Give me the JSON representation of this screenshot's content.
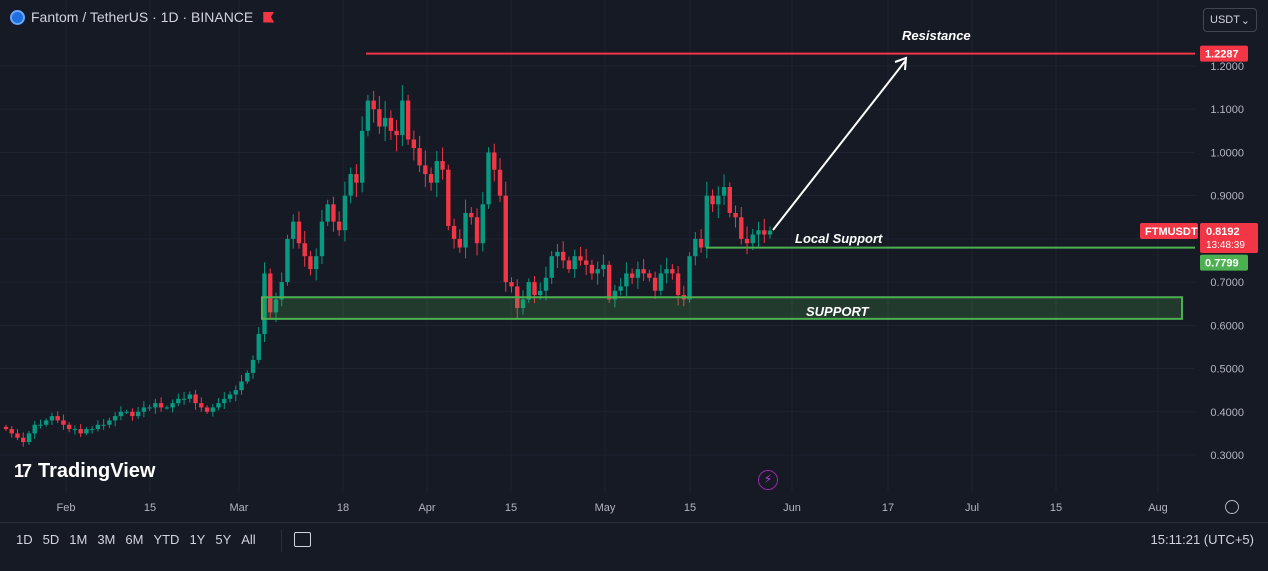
{
  "header": {
    "title": "Fantom / TetherUS · 1D · BINANCE",
    "currency_selector": "USDT",
    "currency_caret": "⌄"
  },
  "branding": {
    "logo_mark": "17",
    "logo_text": "TradingView"
  },
  "bottom_bar": {
    "ranges": [
      "1D",
      "5D",
      "1M",
      "3M",
      "6M",
      "YTD",
      "1Y",
      "5Y",
      "All"
    ],
    "clock": "15:11:21 (UTC+5)"
  },
  "chart_data": {
    "type": "candlestick",
    "symbol": "FTMUSDT",
    "interval": "1D",
    "exchange": "BINANCE",
    "x_axis_ticks": [
      "Feb",
      "15",
      "Mar",
      "18",
      "Apr",
      "15",
      "May",
      "15",
      "Jun",
      "17",
      "Jul",
      "15",
      "Aug"
    ],
    "y_axis_ticks": [
      "1.2000",
      "1.1000",
      "1.0000",
      "0.9000",
      "0.8000",
      "0.7000",
      "0.6000",
      "0.5000",
      "0.4000",
      "0.3000"
    ],
    "ylim": [
      0.23,
      1.3
    ],
    "colors": {
      "up": "#089981",
      "down": "#f23645",
      "grid": "#1f2330",
      "support": "#4caf50",
      "resistance": "#f23645",
      "background": "#161a25"
    },
    "candles_close": [
      0.36,
      0.35,
      0.34,
      0.33,
      0.35,
      0.37,
      0.37,
      0.38,
      0.39,
      0.38,
      0.37,
      0.36,
      0.36,
      0.35,
      0.36,
      0.36,
      0.37,
      0.37,
      0.38,
      0.39,
      0.4,
      0.4,
      0.39,
      0.4,
      0.41,
      0.41,
      0.42,
      0.41,
      0.41,
      0.42,
      0.43,
      0.43,
      0.44,
      0.42,
      0.41,
      0.4,
      0.41,
      0.42,
      0.43,
      0.44,
      0.45,
      0.47,
      0.49,
      0.52,
      0.58,
      0.72,
      0.63,
      0.66,
      0.7,
      0.8,
      0.84,
      0.79,
      0.76,
      0.73,
      0.76,
      0.84,
      0.88,
      0.84,
      0.82,
      0.9,
      0.95,
      0.93,
      1.05,
      1.12,
      1.1,
      1.06,
      1.08,
      1.05,
      1.04,
      1.12,
      1.03,
      1.01,
      0.97,
      0.95,
      0.93,
      0.98,
      0.96,
      0.83,
      0.8,
      0.78,
      0.86,
      0.85,
      0.79,
      0.88,
      1.0,
      0.96,
      0.9,
      0.7,
      0.69,
      0.64,
      0.66,
      0.7,
      0.67,
      0.68,
      0.71,
      0.76,
      0.77,
      0.75,
      0.73,
      0.76,
      0.75,
      0.74,
      0.72,
      0.73,
      0.74,
      0.66,
      0.68,
      0.69,
      0.72,
      0.71,
      0.73,
      0.72,
      0.71,
      0.68,
      0.72,
      0.73,
      0.72,
      0.67,
      0.66,
      0.76,
      0.8,
      0.78,
      0.9,
      0.88,
      0.9,
      0.92,
      0.86,
      0.85,
      0.8,
      0.79,
      0.81,
      0.82,
      0.81,
      0.8192
    ],
    "price_labels": {
      "resistance": "1.2287",
      "current": "0.8192",
      "countdown": "13:48:39",
      "support": "0.7799",
      "symbol_tag": "FTMUSDT"
    },
    "levels": {
      "resistance": 1.2287,
      "local_support": 0.7799,
      "support_zone": [
        0.615,
        0.665
      ]
    },
    "annotations": {
      "resistance": "Resistance",
      "local_support": "Local Support",
      "support_zone": "SUPPORT"
    }
  }
}
